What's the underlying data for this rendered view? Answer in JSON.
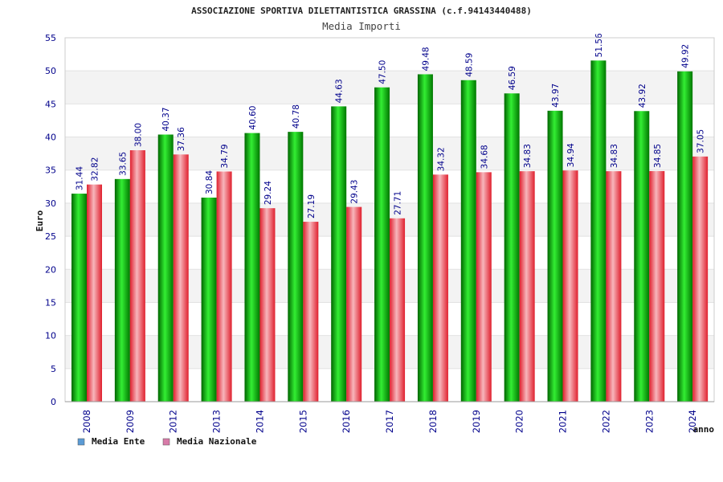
{
  "chart_data": {
    "type": "bar",
    "title": "ASSOCIAZIONE SPORTIVA DILETTANTISTICA GRASSINA (c.f.94143440488)",
    "subtitle": "Media Importi",
    "xlabel": "anno",
    "ylabel": "Euro",
    "ylim": [
      0,
      55
    ],
    "yticks": [
      0,
      5,
      10,
      15,
      20,
      25,
      30,
      35,
      40,
      45,
      50,
      55
    ],
    "grid": true,
    "legend_position": "bottom-left",
    "categories": [
      "2008",
      "2009",
      "2012",
      "2013",
      "2014",
      "2015",
      "2016",
      "2017",
      "2018",
      "2019",
      "2020",
      "2021",
      "2022",
      "2023",
      "2024"
    ],
    "series": [
      {
        "name": "Media Ente",
        "color": "#00b000",
        "legend_color": "#5b9bd5",
        "values": [
          31.44,
          33.65,
          40.37,
          30.84,
          40.6,
          40.78,
          44.63,
          47.5,
          49.48,
          48.59,
          46.59,
          43.97,
          51.56,
          43.92,
          49.92
        ],
        "labels": [
          "31.44",
          "33.65",
          "40.37",
          "30.84",
          "40.60",
          "40.78",
          "44.63",
          "47.50",
          "49.48",
          "48.59",
          "46.59",
          "43.97",
          "51.56",
          "43.92",
          "49.92"
        ]
      },
      {
        "name": "Media Nazionale",
        "color": "#e0303a",
        "legend_color": "#d87ba8",
        "values": [
          32.82,
          38.0,
          37.36,
          34.79,
          29.24,
          27.19,
          29.43,
          27.71,
          34.32,
          34.68,
          34.83,
          34.94,
          34.83,
          34.85,
          37.05
        ],
        "labels": [
          "32.82",
          "38.00",
          "37.36",
          "34.79",
          "29.24",
          "27.19",
          "29.43",
          "27.71",
          "34.32",
          "34.68",
          "34.83",
          "34.94",
          "34.83",
          "34.85",
          "37.05"
        ]
      }
    ]
  }
}
